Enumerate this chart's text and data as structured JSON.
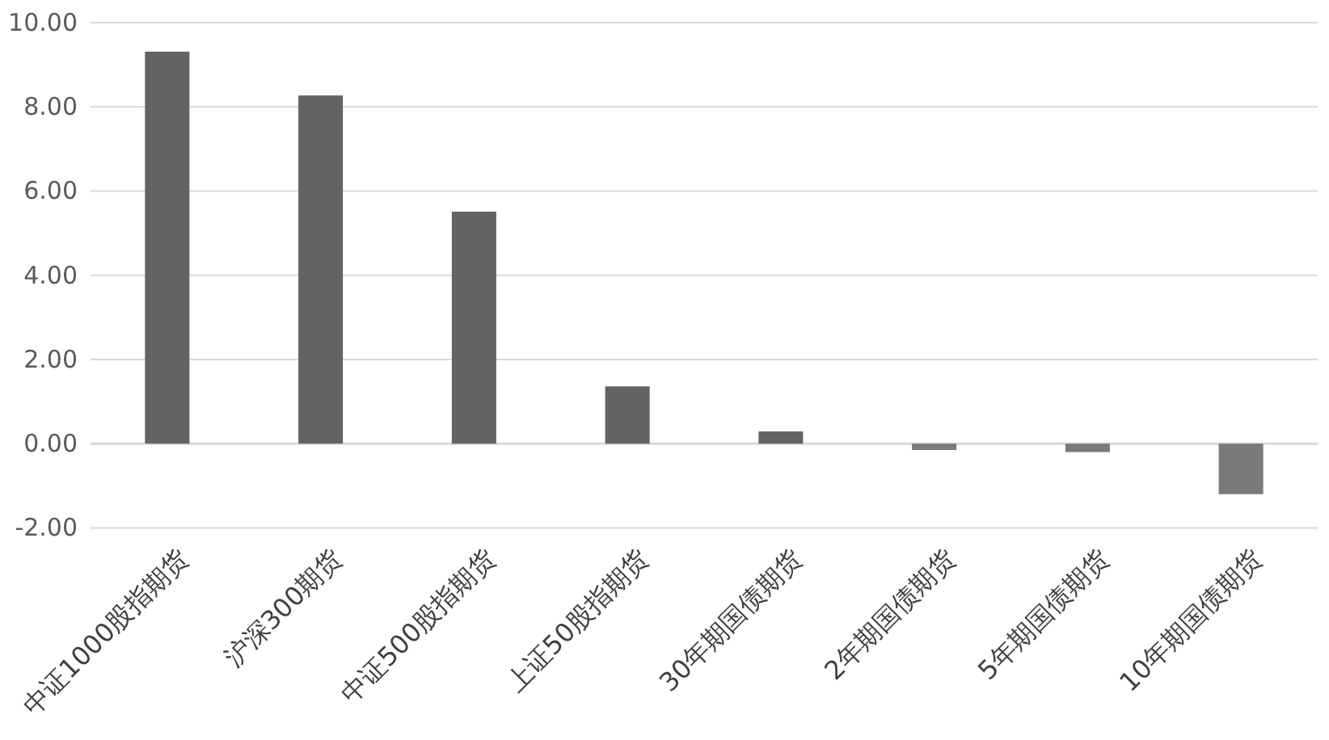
{
  "chart_data": {
    "type": "bar",
    "categories": [
      "中证1000股指期货",
      "沪深300期货",
      "中证500股指期货",
      "上证50股指期货",
      "30年期国债期货",
      "2年期国债期货",
      "5年期国债期货",
      "10年期国债期货"
    ],
    "values": [
      9.31,
      8.27,
      5.51,
      1.36,
      0.29,
      -0.15,
      -0.2,
      -1.2
    ],
    "colors": [
      "#636363",
      "#636363",
      "#636363",
      "#636363",
      "#636363",
      "#7a7a7a",
      "#7a7a7a",
      "#7a7a7a"
    ],
    "ylim": [
      -2,
      10
    ],
    "yticks": [
      {
        "value": -2,
        "label": "-2.00"
      },
      {
        "value": 0,
        "label": "0.00"
      },
      {
        "value": 2,
        "label": "2.00"
      },
      {
        "value": 4,
        "label": "4.00"
      },
      {
        "value": 6,
        "label": "6.00"
      },
      {
        "value": 8,
        "label": "8.00"
      },
      {
        "value": 10,
        "label": "10.00"
      }
    ],
    "grid": "y"
  }
}
